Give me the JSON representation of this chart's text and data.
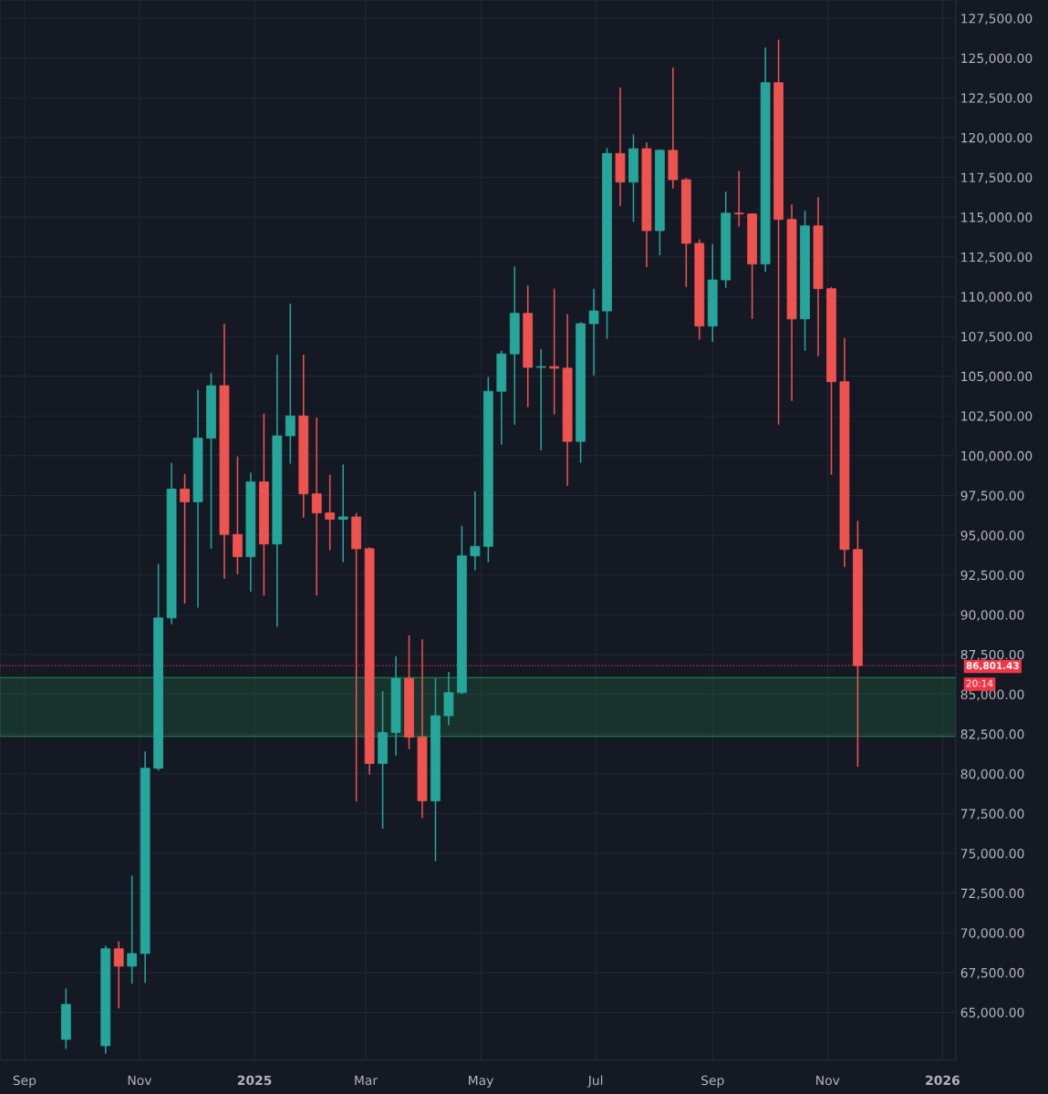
{
  "chart_data": {
    "type": "candlestick",
    "x": [
      "2024-09-23",
      "2024-10-14",
      "2024-10-21",
      "2024-10-28",
      "2024-11-04",
      "2024-11-11",
      "2024-11-18",
      "2024-11-25",
      "2024-12-02",
      "2024-12-09",
      "2024-12-16",
      "2024-12-23",
      "2024-12-30",
      "2025-01-06",
      "2025-01-13",
      "2025-01-20",
      "2025-01-27",
      "2025-02-03",
      "2025-02-10",
      "2025-02-17",
      "2025-02-24",
      "2025-03-03",
      "2025-03-10",
      "2025-03-17",
      "2025-03-24",
      "2025-03-31",
      "2025-04-07",
      "2025-04-14",
      "2025-04-21",
      "2025-04-28",
      "2025-05-05",
      "2025-05-12",
      "2025-05-19",
      "2025-05-26",
      "2025-06-02",
      "2025-06-09",
      "2025-06-16",
      "2025-06-23",
      "2025-06-30",
      "2025-07-07",
      "2025-07-14",
      "2025-07-21",
      "2025-07-28",
      "2025-08-04",
      "2025-08-11",
      "2025-08-18",
      "2025-08-25",
      "2025-09-01",
      "2025-09-08",
      "2025-09-15",
      "2025-09-22",
      "2025-09-29",
      "2025-10-06",
      "2025-10-13",
      "2025-10-20",
      "2025-10-27",
      "2025-11-03",
      "2025-11-10",
      "2025-11-17"
    ],
    "ohlc": [
      [
        63300,
        66500,
        62700,
        65500
      ],
      [
        62900,
        69200,
        62400,
        69000
      ],
      [
        69000,
        69450,
        65250,
        67900
      ],
      [
        67900,
        73600,
        66800,
        68700
      ],
      [
        68700,
        81400,
        66850,
        80350
      ],
      [
        80350,
        93200,
        80200,
        89800
      ],
      [
        89800,
        99550,
        89400,
        97900
      ],
      [
        97900,
        98850,
        90700,
        97100
      ],
      [
        97100,
        104150,
        90450,
        101100
      ],
      [
        101100,
        105200,
        94150,
        104400
      ],
      [
        104400,
        108300,
        92250,
        95050
      ],
      [
        95050,
        99950,
        92550,
        93650
      ],
      [
        93650,
        98950,
        91450,
        98350
      ],
      [
        98350,
        102650,
        91200,
        94450
      ],
      [
        94450,
        106350,
        89250,
        101250
      ],
      [
        101250,
        109550,
        99500,
        102500
      ],
      [
        102500,
        106350,
        96100,
        97600
      ],
      [
        97600,
        102400,
        91200,
        96400
      ],
      [
        96400,
        98800,
        94050,
        96000
      ],
      [
        96000,
        99450,
        93300,
        96150
      ],
      [
        96150,
        96400,
        78250,
        94150
      ],
      [
        94150,
        94250,
        79950,
        80650
      ],
      [
        80650,
        85200,
        76550,
        82600
      ],
      [
        82600,
        87400,
        81150,
        86000
      ],
      [
        86000,
        88700,
        81550,
        82300
      ],
      [
        82300,
        88450,
        77200,
        78300
      ],
      [
        78300,
        86000,
        74500,
        83650
      ],
      [
        83650,
        86400,
        83050,
        85100
      ],
      [
        85100,
        95600,
        85000,
        93700
      ],
      [
        93700,
        97750,
        92800,
        94300
      ],
      [
        94300,
        104950,
        93300,
        104050
      ],
      [
        104050,
        106600,
        100700,
        106400
      ],
      [
        106400,
        111900,
        101950,
        108950
      ],
      [
        108950,
        110700,
        103050,
        105550
      ],
      [
        105550,
        106700,
        100350,
        105600
      ],
      [
        105600,
        110500,
        102600,
        105500
      ],
      [
        105500,
        108900,
        98100,
        100900
      ],
      [
        100900,
        108400,
        99550,
        108300
      ],
      [
        108300,
        110500,
        105050,
        109100
      ],
      [
        109100,
        119350,
        107350,
        119000
      ],
      [
        119000,
        123150,
        115700,
        117200
      ],
      [
        117200,
        120200,
        114700,
        119300
      ],
      [
        119300,
        119700,
        111850,
        114150
      ],
      [
        114150,
        119250,
        112600,
        119200
      ],
      [
        119200,
        124400,
        116800,
        117350
      ],
      [
        117350,
        117450,
        110600,
        113350
      ],
      [
        113350,
        113600,
        107300,
        108150
      ],
      [
        108150,
        113300,
        107150,
        111050
      ],
      [
        111050,
        116600,
        110550,
        115250
      ],
      [
        115250,
        117900,
        114400,
        115200
      ],
      [
        115200,
        115250,
        108600,
        112050
      ],
      [
        112050,
        125650,
        111550,
        123450
      ],
      [
        123450,
        126150,
        101950,
        114850
      ],
      [
        114850,
        115800,
        103450,
        108600
      ],
      [
        108600,
        115400,
        106600,
        114450
      ],
      [
        114450,
        116250,
        106250,
        110500
      ],
      [
        110500,
        110600,
        98800,
        104650
      ],
      [
        104650,
        107400,
        93000,
        94100
      ],
      [
        94100,
        95900,
        80450,
        86801.43
      ]
    ],
    "colors": [
      "#26a69a",
      "#26a69a",
      "#ef5350",
      "#26a69a",
      "#26a69a",
      "#26a69a",
      "#26a69a",
      "#ef5350",
      "#26a69a",
      "#26a69a",
      "#ef5350",
      "#ef5350",
      "#26a69a",
      "#ef5350",
      "#26a69a",
      "#26a69a",
      "#ef5350",
      "#ef5350",
      "#ef5350",
      "#26a69a",
      "#ef5350",
      "#ef5350",
      "#26a69a",
      "#26a69a",
      "#ef5350",
      "#ef5350",
      "#26a69a",
      "#26a69a",
      "#26a69a",
      "#26a69a",
      "#26a69a",
      "#26a69a",
      "#26a69a",
      "#ef5350",
      "#26a69a",
      "#ef5350",
      "#ef5350",
      "#26a69a",
      "#26a69a",
      "#26a69a",
      "#ef5350",
      "#26a69a",
      "#ef5350",
      "#26a69a",
      "#ef5350",
      "#ef5350",
      "#ef5350",
      "#26a69a",
      "#26a69a",
      "#ef5350",
      "#ef5350",
      "#26a69a",
      "#ef5350",
      "#ef5350",
      "#26a69a",
      "#ef5350",
      "#ef5350",
      "#ef5350",
      "#ef5350"
    ],
    "xlim": [
      "2024-08-19",
      "2026-01-08"
    ],
    "xticks": [
      {
        "value": "2024-09-01",
        "label": "Sep"
      },
      {
        "value": "2024-11-01",
        "label": "Nov"
      },
      {
        "value": "2025-01-01",
        "label": "2025"
      },
      {
        "value": "2025-03-01",
        "label": "Mar"
      },
      {
        "value": "2025-05-01",
        "label": "May"
      },
      {
        "value": "2025-07-01",
        "label": "Jul"
      },
      {
        "value": "2025-09-01",
        "label": "Sep"
      },
      {
        "value": "2025-11-01",
        "label": "Nov"
      },
      {
        "value": "2026-01-01",
        "label": "2026"
      }
    ],
    "ylim": [
      62000,
      128650
    ],
    "yticks": [
      {
        "value": 65000,
        "label": "65,000.00"
      },
      {
        "value": 67500,
        "label": "67,500.00"
      },
      {
        "value": 70000,
        "label": "70,000.00"
      },
      {
        "value": 72500,
        "label": "72,500.00"
      },
      {
        "value": 75000,
        "label": "75,000.00"
      },
      {
        "value": 77500,
        "label": "77,500.00"
      },
      {
        "value": 80000,
        "label": "80,000.00"
      },
      {
        "value": 82500,
        "label": "82,500.00"
      },
      {
        "value": 85000,
        "label": "85,000.00"
      },
      {
        "value": 87500,
        "label": "87,500.00"
      },
      {
        "value": 90000,
        "label": "90,000.00"
      },
      {
        "value": 92500,
        "label": "92,500.00"
      },
      {
        "value": 95000,
        "label": "95,000.00"
      },
      {
        "value": 97500,
        "label": "97,500.00"
      },
      {
        "value": 100000,
        "label": "100,000.00"
      },
      {
        "value": 102500,
        "label": "102,500.00"
      },
      {
        "value": 105000,
        "label": "105,000.00"
      },
      {
        "value": 107500,
        "label": "107,500.00"
      },
      {
        "value": 110000,
        "label": "110,000.00"
      },
      {
        "value": 112500,
        "label": "112,500.00"
      },
      {
        "value": 115000,
        "label": "115,000.00"
      },
      {
        "value": 117500,
        "label": "117,500.00"
      },
      {
        "value": 120000,
        "label": "120,000.00"
      },
      {
        "value": 122500,
        "label": "122,500.00"
      },
      {
        "value": 125000,
        "label": "125,000.00"
      },
      {
        "value": 127500,
        "label": "127,500.00"
      }
    ],
    "ref_lines": [
      {
        "axis": "y",
        "value": 86801.43,
        "label": "86,801.43",
        "color": "#f23645",
        "line_style": "dotted"
      }
    ],
    "bands": [
      {
        "axis": "y",
        "from": 82350,
        "to": 86050,
        "color": "#26a65b"
      }
    ],
    "annotations": [
      "20:14"
    ],
    "grid": true
  }
}
